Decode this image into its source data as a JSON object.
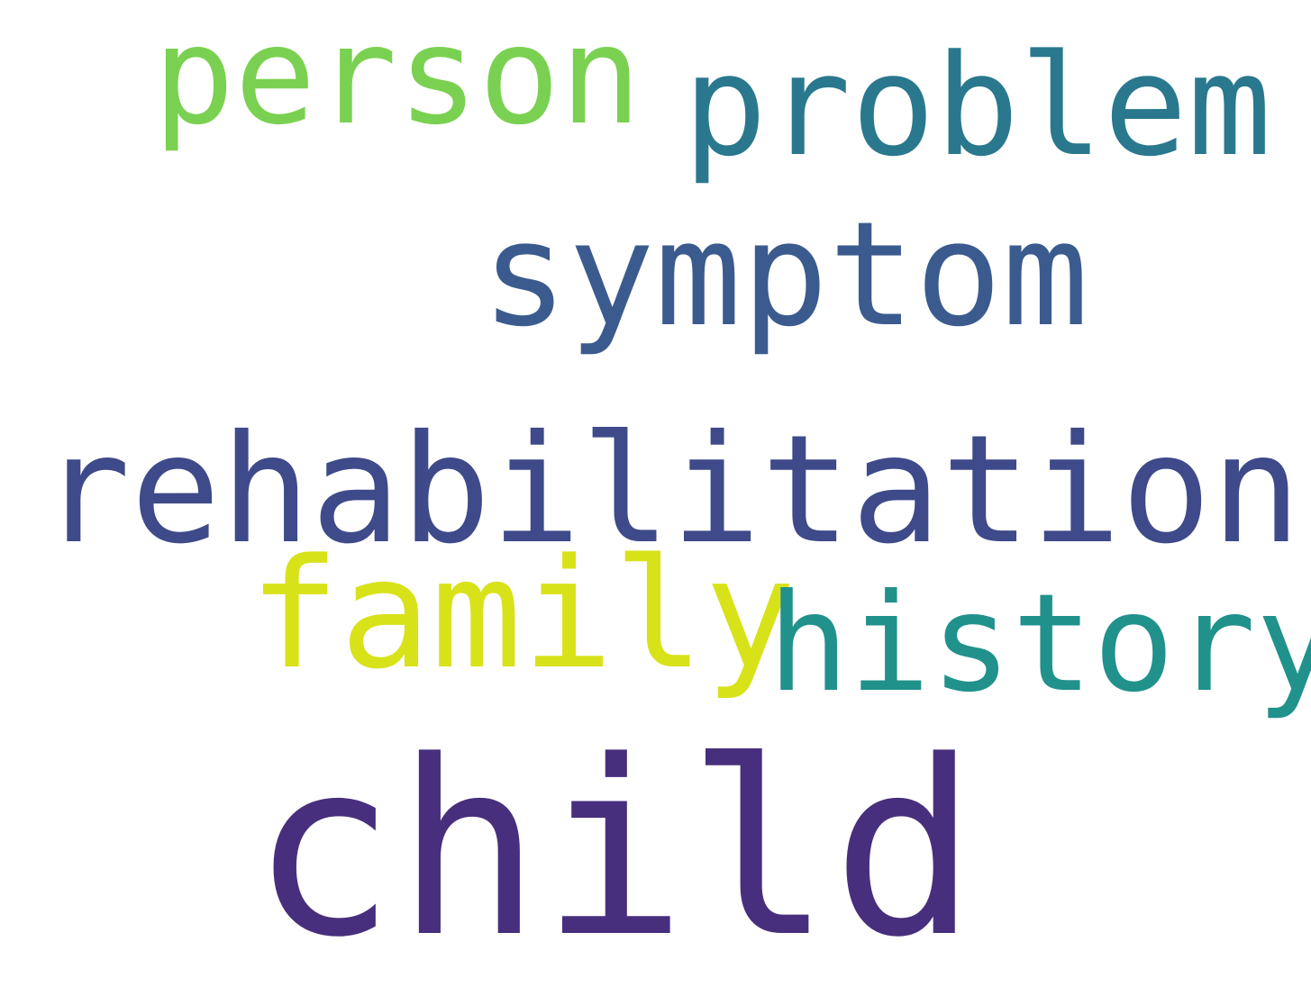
{
  "words": {
    "person": {
      "text": "person",
      "color": "#7ad151"
    },
    "problem": {
      "text": "problem",
      "color": "#2a788e"
    },
    "symptom": {
      "text": "symptom",
      "color": "#3b5b8f"
    },
    "rehabilitation": {
      "text": "rehabilitation",
      "color": "#3e4a89"
    },
    "family": {
      "text": "family",
      "color": "#d8e219"
    },
    "history": {
      "text": "history",
      "color": "#21918c"
    },
    "child": {
      "text": "child",
      "color": "#472f7d"
    }
  }
}
